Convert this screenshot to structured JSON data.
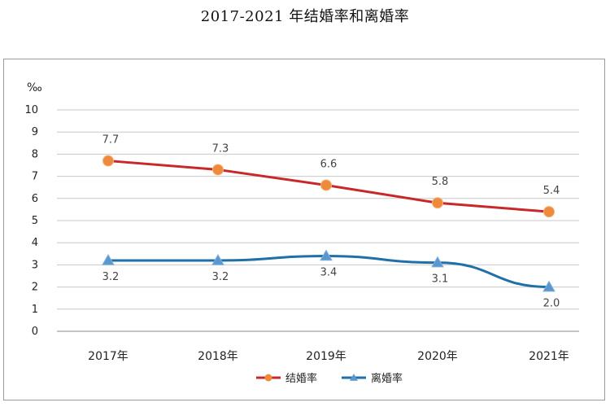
{
  "chart_data": {
    "type": "line",
    "title": "2017-2021 年结婚率和离婚率",
    "unit": "‰",
    "categories": [
      "2017年",
      "2018年",
      "2019年",
      "2020年",
      "2021年"
    ],
    "ylim": [
      0,
      10
    ],
    "yticks": [
      "0",
      "1",
      "2",
      "3",
      "4",
      "5",
      "6",
      "7",
      "8",
      "9",
      "10"
    ],
    "grid": true,
    "legend_position": "bottom",
    "series": [
      {
        "name": "结婚率",
        "color": "#c8282a",
        "marker_color": "#ee8a3c",
        "marker": "circle",
        "values": [
          7.7,
          7.3,
          6.6,
          5.8,
          5.4
        ],
        "labels": [
          "7.7",
          "7.3",
          "6.6",
          "5.8",
          "5.4"
        ]
      },
      {
        "name": "离婚率",
        "color": "#1f6fa8",
        "marker_color": "#5b97cf",
        "marker": "triangle",
        "values": [
          3.2,
          3.2,
          3.4,
          3.1,
          2.0
        ],
        "labels": [
          "3.2",
          "3.2",
          "3.4",
          "3.1",
          "2.0"
        ]
      }
    ]
  }
}
